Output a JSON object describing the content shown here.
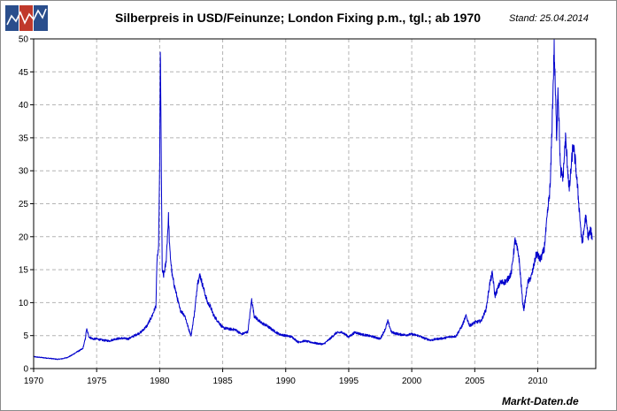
{
  "header": {
    "title": "Silberpreis in USD/Feinunze; London Fixing p.m., tgl.; ab 1970",
    "stand": "Stand: 25.04.2014"
  },
  "footer": {
    "brand": "Markt-Daten.de"
  },
  "logo": {
    "icon": "chart-trend-logo-icon",
    "colors": [
      "#2a4e8c",
      "#c0392b",
      "#2a4e8c"
    ]
  },
  "chart_data": {
    "type": "line",
    "title": "Silberpreis in USD/Feinunze; London Fixing p.m., tgl.; ab 1970",
    "xlabel": "",
    "ylabel": "",
    "xlim": [
      1970,
      2014.6
    ],
    "ylim": [
      0,
      50
    ],
    "grid": true,
    "line_color": "#0000cc",
    "x_ticks": [
      1970,
      1975,
      1980,
      1985,
      1990,
      1995,
      2000,
      2005,
      2010
    ],
    "y_ticks": [
      0,
      5,
      10,
      15,
      20,
      25,
      30,
      35,
      40,
      45,
      50
    ],
    "series": [
      {
        "points": [
          [
            1970.0,
            1.8
          ],
          [
            1970.5,
            1.7
          ],
          [
            1971.0,
            1.6
          ],
          [
            1971.5,
            1.5
          ],
          [
            1971.9,
            1.4
          ],
          [
            1972.3,
            1.5
          ],
          [
            1972.7,
            1.7
          ],
          [
            1973.0,
            2.0
          ],
          [
            1973.5,
            2.6
          ],
          [
            1973.9,
            3.0
          ],
          [
            1974.1,
            4.5
          ],
          [
            1974.2,
            6.0
          ],
          [
            1974.4,
            4.8
          ],
          [
            1974.7,
            4.5
          ],
          [
            1975.0,
            4.5
          ],
          [
            1975.5,
            4.3
          ],
          [
            1976.0,
            4.2
          ],
          [
            1976.5,
            4.5
          ],
          [
            1977.0,
            4.6
          ],
          [
            1977.5,
            4.5
          ],
          [
            1978.0,
            5.0
          ],
          [
            1978.5,
            5.5
          ],
          [
            1979.0,
            6.5
          ],
          [
            1979.4,
            8.0
          ],
          [
            1979.7,
            9.5
          ],
          [
            1979.8,
            17.0
          ],
          [
            1979.9,
            17.5
          ],
          [
            1980.0,
            30.0
          ],
          [
            1980.05,
            48.7
          ],
          [
            1980.1,
            38.0
          ],
          [
            1980.2,
            15.0
          ],
          [
            1980.3,
            14.0
          ],
          [
            1980.5,
            16.0
          ],
          [
            1980.7,
            23.0
          ],
          [
            1980.8,
            18.0
          ],
          [
            1981.0,
            14.0
          ],
          [
            1981.3,
            11.5
          ],
          [
            1981.6,
            9.0
          ],
          [
            1982.0,
            8.0
          ],
          [
            1982.3,
            6.0
          ],
          [
            1982.5,
            5.0
          ],
          [
            1982.8,
            9.0
          ],
          [
            1983.0,
            13.0
          ],
          [
            1983.2,
            14.2
          ],
          [
            1983.5,
            12.0
          ],
          [
            1983.8,
            10.0
          ],
          [
            1984.0,
            9.5
          ],
          [
            1984.3,
            8.0
          ],
          [
            1984.7,
            7.0
          ],
          [
            1985.0,
            6.2
          ],
          [
            1985.5,
            6.0
          ],
          [
            1986.0,
            5.9
          ],
          [
            1986.5,
            5.2
          ],
          [
            1987.0,
            5.6
          ],
          [
            1987.3,
            10.5
          ],
          [
            1987.5,
            8.0
          ],
          [
            1988.0,
            7.0
          ],
          [
            1988.5,
            6.5
          ],
          [
            1989.0,
            5.8
          ],
          [
            1989.5,
            5.2
          ],
          [
            1990.0,
            5.0
          ],
          [
            1990.5,
            4.8
          ],
          [
            1991.0,
            4.0
          ],
          [
            1991.5,
            4.2
          ],
          [
            1992.0,
            4.0
          ],
          [
            1992.5,
            3.8
          ],
          [
            1993.0,
            3.7
          ],
          [
            1993.5,
            4.5
          ],
          [
            1994.0,
            5.4
          ],
          [
            1994.5,
            5.5
          ],
          [
            1995.0,
            4.8
          ],
          [
            1995.5,
            5.5
          ],
          [
            1996.0,
            5.2
          ],
          [
            1996.5,
            5.0
          ],
          [
            1997.0,
            4.8
          ],
          [
            1997.5,
            4.5
          ],
          [
            1997.9,
            6.0
          ],
          [
            1998.1,
            7.2
          ],
          [
            1998.4,
            5.5
          ],
          [
            1999.0,
            5.2
          ],
          [
            1999.5,
            5.1
          ],
          [
            2000.0,
            5.2
          ],
          [
            2000.5,
            5.0
          ],
          [
            2001.0,
            4.6
          ],
          [
            2001.5,
            4.3
          ],
          [
            2002.0,
            4.5
          ],
          [
            2002.5,
            4.6
          ],
          [
            2003.0,
            4.8
          ],
          [
            2003.5,
            4.9
          ],
          [
            2004.0,
            6.5
          ],
          [
            2004.3,
            8.0
          ],
          [
            2004.6,
            6.5
          ],
          [
            2005.0,
            7.0
          ],
          [
            2005.5,
            7.2
          ],
          [
            2005.9,
            9.0
          ],
          [
            2006.2,
            13.0
          ],
          [
            2006.4,
            14.5
          ],
          [
            2006.6,
            11.0
          ],
          [
            2007.0,
            13.0
          ],
          [
            2007.5,
            13.2
          ],
          [
            2007.9,
            14.5
          ],
          [
            2008.2,
            19.5
          ],
          [
            2008.5,
            17.0
          ],
          [
            2008.8,
            10.0
          ],
          [
            2008.9,
            9.0
          ],
          [
            2009.2,
            13.0
          ],
          [
            2009.5,
            14.0
          ],
          [
            2009.9,
            17.5
          ],
          [
            2010.2,
            16.5
          ],
          [
            2010.5,
            18.0
          ],
          [
            2010.8,
            24.0
          ],
          [
            2011.0,
            28.0
          ],
          [
            2011.3,
            48.5
          ],
          [
            2011.5,
            35.0
          ],
          [
            2011.6,
            43.0
          ],
          [
            2011.8,
            30.0
          ],
          [
            2012.0,
            29.0
          ],
          [
            2012.2,
            35.0
          ],
          [
            2012.5,
            27.0
          ],
          [
            2012.8,
            34.0
          ],
          [
            2013.0,
            31.0
          ],
          [
            2013.3,
            24.0
          ],
          [
            2013.5,
            19.0
          ],
          [
            2013.6,
            20.0
          ],
          [
            2013.8,
            23.0
          ],
          [
            2014.0,
            20.0
          ],
          [
            2014.2,
            21.0
          ],
          [
            2014.32,
            19.5
          ]
        ]
      }
    ]
  }
}
